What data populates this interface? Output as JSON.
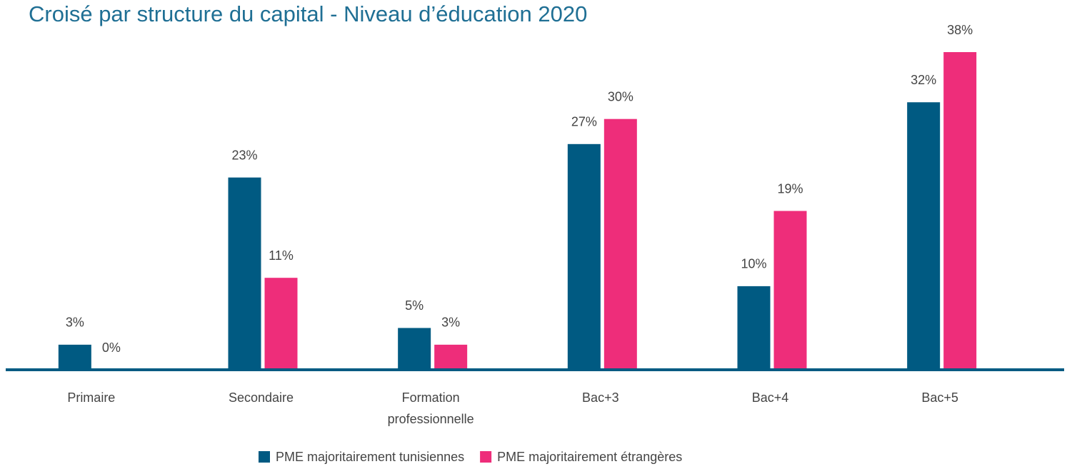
{
  "chart_data": {
    "type": "bar",
    "title": "Croisé par structure du capital - Niveau d’éducation 2020",
    "categories": [
      "Primaire",
      "Secondaire",
      "Formation professionnelle",
      "Bac+3",
      "Bac+4",
      "Bac+5"
    ],
    "series": [
      {
        "name": "PME majoritairement tunisiennes",
        "color": "#005a82",
        "values": [
          3,
          23,
          5,
          27,
          10,
          32
        ],
        "value_labels": [
          "3%",
          "23%",
          "5%",
          "27%",
          "10%",
          "32%"
        ]
      },
      {
        "name": "PME majoritairement étrangères",
        "color": "#ee2d7a",
        "values": [
          0,
          11,
          3,
          30,
          19,
          38
        ],
        "value_labels": [
          "0%",
          "11%",
          "3%",
          "30%",
          "19%",
          "38%"
        ]
      }
    ]
  }
}
